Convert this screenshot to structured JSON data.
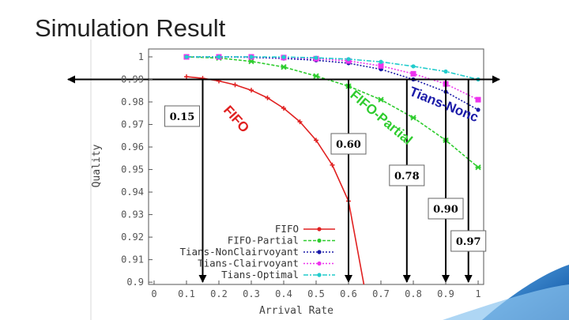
{
  "title": "Simulation Result",
  "chart_data": {
    "type": "line",
    "xlabel": "Arrival Rate",
    "ylabel": "Quality",
    "xlim": [
      -0.017,
      1.017
    ],
    "ylim": [
      0.899,
      1.0035
    ],
    "xticks": [
      0,
      0.1,
      0.2,
      0.3,
      0.4,
      0.5,
      0.6,
      0.7,
      0.8,
      0.9,
      1
    ],
    "yticks": [
      0.9,
      0.91,
      0.92,
      0.93,
      0.94,
      0.95,
      0.96,
      0.97,
      0.98,
      0.99,
      1
    ],
    "legend": "lower left",
    "series": [
      {
        "name": "FIFO",
        "color": "#e02020",
        "dash": "none",
        "marker": "plus",
        "x": [
          0.1,
          0.15,
          0.2,
          0.25,
          0.3,
          0.35,
          0.4,
          0.45,
          0.5,
          0.55,
          0.6,
          0.65
        ],
        "values": [
          0.9912,
          0.9905,
          0.9893,
          0.9876,
          0.9852,
          0.9818,
          0.9772,
          0.9712,
          0.963,
          0.952,
          0.936,
          0.897
        ]
      },
      {
        "name": "FIFO-Partial",
        "color": "#2ecc2e",
        "dash": "4 2",
        "marker": "star",
        "x": [
          0.1,
          0.2,
          0.3,
          0.4,
          0.5,
          0.6,
          0.7,
          0.8,
          0.9,
          1
        ],
        "values": [
          1.0,
          0.9995,
          0.998,
          0.9955,
          0.9915,
          0.987,
          0.981,
          0.973,
          0.963,
          0.951
        ]
      },
      {
        "name": "Tians-NonClairvoyant",
        "color": "#1a1aa8",
        "dash": "2 2",
        "marker": "circle",
        "x": [
          0.1,
          0.2,
          0.3,
          0.4,
          0.5,
          0.6,
          0.7,
          0.8,
          0.9,
          1
        ],
        "values": [
          1.0,
          1.0,
          0.9998,
          0.9993,
          0.9985,
          0.9972,
          0.9945,
          0.99,
          0.9845,
          0.9765
        ]
      },
      {
        "name": "Tians-Clairvoyant",
        "color": "#ee33ee",
        "dash": "2 2",
        "marker": "square",
        "x": [
          0.1,
          0.2,
          0.3,
          0.4,
          0.5,
          0.6,
          0.7,
          0.8,
          0.9,
          1
        ],
        "values": [
          1.0,
          1.0,
          1.0,
          0.9997,
          0.9992,
          0.9982,
          0.996,
          0.9925,
          0.988,
          0.981
        ]
      },
      {
        "name": "Tians-Optimal",
        "color": "#22cccc",
        "dash": "6 2 2 2",
        "marker": "circle",
        "x": [
          0.1,
          0.2,
          0.3,
          0.4,
          0.5,
          0.6,
          0.7,
          0.8,
          0.9,
          1
        ],
        "values": [
          1.0,
          1.0,
          1.0,
          0.9999,
          0.9996,
          0.999,
          0.9978,
          0.9958,
          0.9935,
          0.99
        ]
      }
    ],
    "reference_line": 0.99,
    "arrows": [
      0.15,
      {
        "value": 0.6,
        "label": "0.60"
      },
      0.78,
      {
        "value": 0.9,
        "label": "0.90"
      },
      0.97
    ],
    "curve_labels": [
      "FIFO",
      "FIFO-Partial",
      "Tians-Nonc"
    ]
  }
}
